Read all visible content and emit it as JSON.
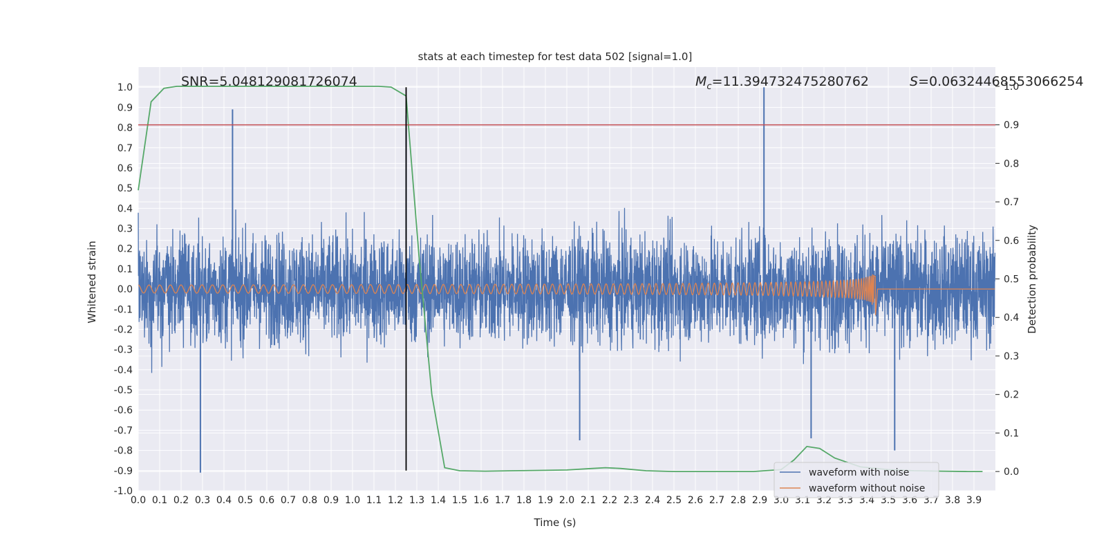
{
  "chart_data": {
    "type": "line",
    "title": "stats at each timestep for test data 502 [signal=1.0]",
    "xlabel": "Time (s)",
    "ylabel": "Whitened strain",
    "ylabel_right": "Detection probability",
    "xlim": [
      0.0,
      4.0
    ],
    "ylim": [
      -1.0,
      1.1
    ],
    "ylim_right": [
      -0.05,
      1.05
    ],
    "x_ticks": [
      "0.0",
      "0.1",
      "0.2",
      "0.3",
      "0.4",
      "0.5",
      "0.6",
      "0.7",
      "0.8",
      "0.9",
      "1.0",
      "1.1",
      "1.2",
      "1.3",
      "1.4",
      "1.5",
      "1.6",
      "1.7",
      "1.8",
      "1.9",
      "2.0",
      "2.1",
      "2.2",
      "2.3",
      "2.4",
      "2.5",
      "2.6",
      "2.7",
      "2.8",
      "2.9",
      "3.0",
      "3.1",
      "3.2",
      "3.3",
      "3.4",
      "3.5",
      "3.6",
      "3.7",
      "3.8",
      "3.9"
    ],
    "y_ticks": [
      "-1.0",
      "-0.9",
      "-0.8",
      "-0.7",
      "-0.6",
      "-0.5",
      "-0.4",
      "-0.3",
      "-0.2",
      "-0.1",
      "0.0",
      "0.1",
      "0.2",
      "0.3",
      "0.4",
      "0.5",
      "0.6",
      "0.7",
      "0.8",
      "0.9",
      "1.0"
    ],
    "y_ticks_right": [
      "0.0",
      "0.1",
      "0.2",
      "0.3",
      "0.4",
      "0.5",
      "0.6",
      "0.7",
      "0.8",
      "0.9",
      "1.0"
    ],
    "annotations": {
      "snr": "SNR=5.048129081726074",
      "mc": "M_c=11.394732475280762",
      "mc_symbol": "M",
      "mc_sub": "c",
      "mc_value": "=11.394732475280762",
      "s": "S=0.06324468553066254",
      "s_symbol": "S",
      "s_value": "=0.06324468553066254"
    },
    "threshold_line": {
      "right_axis_value": 0.9,
      "color": "#c44e52"
    },
    "vertical_marker": {
      "x": 1.25,
      "color": "#000000"
    },
    "series": [
      {
        "name": "waveform with noise",
        "axis": "left",
        "color": "#4c72b0",
        "description": "noisy whitened strain, roughly within -0.6 to 0.7 with spikes to ~1.0 near t=2.92 and ~0.89 near t=0.44",
        "amplitude_hint": 0.3,
        "spikes": [
          {
            "x": 0.29,
            "y": -0.91
          },
          {
            "x": 0.44,
            "y": 0.89
          },
          {
            "x": 1.25,
            "y": 0.86
          },
          {
            "x": 2.06,
            "y": -0.75
          },
          {
            "x": 2.92,
            "y": 1.0
          },
          {
            "x": 3.14,
            "y": -0.74
          },
          {
            "x": 3.53,
            "y": -0.8
          }
        ]
      },
      {
        "name": "waveform without noise",
        "axis": "left",
        "color": "#dd8452",
        "description": "chirp signal, amplitude ~0.02 growing to ~0.14, merger near t=3.44 then flat",
        "merger_x": 3.44,
        "start_amplitude": 0.02,
        "peak_amplitude": 0.14
      },
      {
        "name": "detection probability",
        "axis": "right",
        "color": "#55a868",
        "x": [
          0.0,
          0.06,
          0.12,
          0.18,
          0.25,
          0.31,
          0.37,
          0.43,
          0.5,
          0.56,
          0.62,
          0.68,
          0.75,
          0.81,
          0.87,
          0.93,
          1.0,
          1.06,
          1.12,
          1.18,
          1.25,
          1.31,
          1.37,
          1.43,
          1.5,
          1.62,
          1.75,
          1.87,
          2.0,
          2.12,
          2.18,
          2.25,
          2.37,
          2.5,
          2.62,
          2.75,
          2.87,
          3.0,
          3.06,
          3.12,
          3.18,
          3.25,
          3.37,
          3.5,
          3.62,
          3.75,
          3.87,
          3.94
        ],
        "y": [
          0.73,
          0.96,
          0.995,
          1.0,
          1.0,
          1.0,
          1.0,
          1.0,
          1.0,
          1.0,
          1.0,
          1.0,
          1.0,
          1.0,
          1.0,
          1.0,
          1.0,
          1.0,
          1.0,
          0.998,
          0.975,
          0.56,
          0.2,
          0.01,
          0.002,
          0.001,
          0.002,
          0.003,
          0.004,
          0.008,
          0.01,
          0.008,
          0.002,
          0.0,
          0.0,
          0.0,
          0.0,
          0.005,
          0.03,
          0.065,
          0.06,
          0.035,
          0.012,
          0.005,
          0.002,
          0.001,
          0.0,
          0.0
        ]
      }
    ],
    "legend": {
      "placement": "bottom-right",
      "entries": [
        {
          "label": "waveform with noise",
          "color": "#4c72b0"
        },
        {
          "label": "waveform without noise",
          "color": "#dd8452"
        }
      ]
    },
    "grid": true,
    "background": "#eaeaf2"
  }
}
